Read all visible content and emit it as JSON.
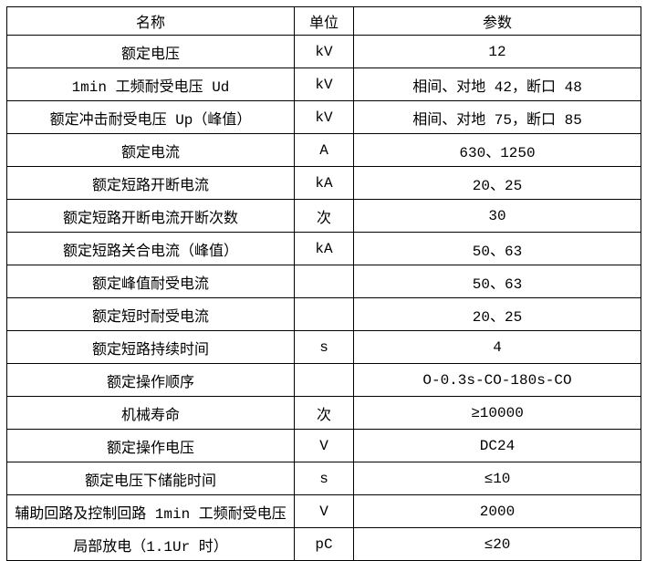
{
  "table": {
    "columns": [
      {
        "label": "名称"
      },
      {
        "label": "单位"
      },
      {
        "label": "参数"
      }
    ],
    "rows": [
      {
        "name": "额定电压",
        "unit": "kV",
        "value": "12"
      },
      {
        "name": "1min 工频耐受电压 Ud",
        "unit": "kV",
        "value": "相间、对地 42，断口 48"
      },
      {
        "name": "额定冲击耐受电压 Up（峰值）",
        "unit": "kV",
        "value": "相间、对地 75，断口 85"
      },
      {
        "name": "额定电流",
        "unit": "A",
        "value": "630、1250"
      },
      {
        "name": "额定短路开断电流",
        "unit": "kA",
        "value": "20、25"
      },
      {
        "name": "额定短路开断电流开断次数",
        "unit": "次",
        "value": "30"
      },
      {
        "name": "额定短路关合电流（峰值）",
        "unit": "kA",
        "value": "50、63"
      },
      {
        "name": "额定峰值耐受电流",
        "unit": "",
        "value": "50、63"
      },
      {
        "name": "额定短时耐受电流",
        "unit": "",
        "value": "20、25"
      },
      {
        "name": "额定短路持续时间",
        "unit": "s",
        "value": "4"
      },
      {
        "name": "额定操作顺序",
        "unit": "",
        "value": "O-0.3s-CO-180s-CO"
      },
      {
        "name": "机械寿命",
        "unit": "次",
        "value": "≥10000"
      },
      {
        "name": "额定操作电压",
        "unit": "V",
        "value": "DC24"
      },
      {
        "name": "额定电压下储能时间",
        "unit": "s",
        "value": "≤10"
      },
      {
        "name": "辅助回路及控制回路 1min 工频耐受电压",
        "unit": "V",
        "value": "2000"
      },
      {
        "name": "局部放电（1.1Ur 时）",
        "unit": "pC",
        "value": "≤20"
      }
    ],
    "colors": {
      "border": "#000000",
      "text": "#000000",
      "background": "#ffffff"
    }
  }
}
